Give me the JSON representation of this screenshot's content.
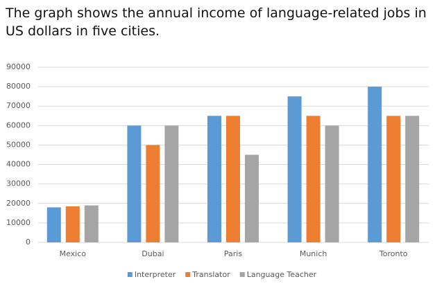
{
  "chart_data": {
    "type": "bar",
    "title": "The graph shows the annual income of language-related jobs in US dollars in five cities.",
    "categories": [
      "Mexico",
      "Dubai",
      "Paris",
      "Munich",
      "Toronto"
    ],
    "series": [
      {
        "name": "Interpreter",
        "color": "#5b9bd5",
        "values": [
          18000,
          60000,
          65000,
          75000,
          80000
        ]
      },
      {
        "name": "Translator",
        "color": "#ed7d31",
        "values": [
          18500,
          50000,
          65000,
          65000,
          65000
        ]
      },
      {
        "name": "Language Teacher",
        "color": "#a5a5a5",
        "values": [
          19000,
          60000,
          45000,
          60000,
          65000
        ]
      }
    ],
    "ylim": [
      0,
      90000
    ],
    "yticks": [
      0,
      10000,
      20000,
      30000,
      40000,
      50000,
      60000,
      70000,
      80000,
      90000
    ],
    "grid": true,
    "legend": "bottom"
  }
}
